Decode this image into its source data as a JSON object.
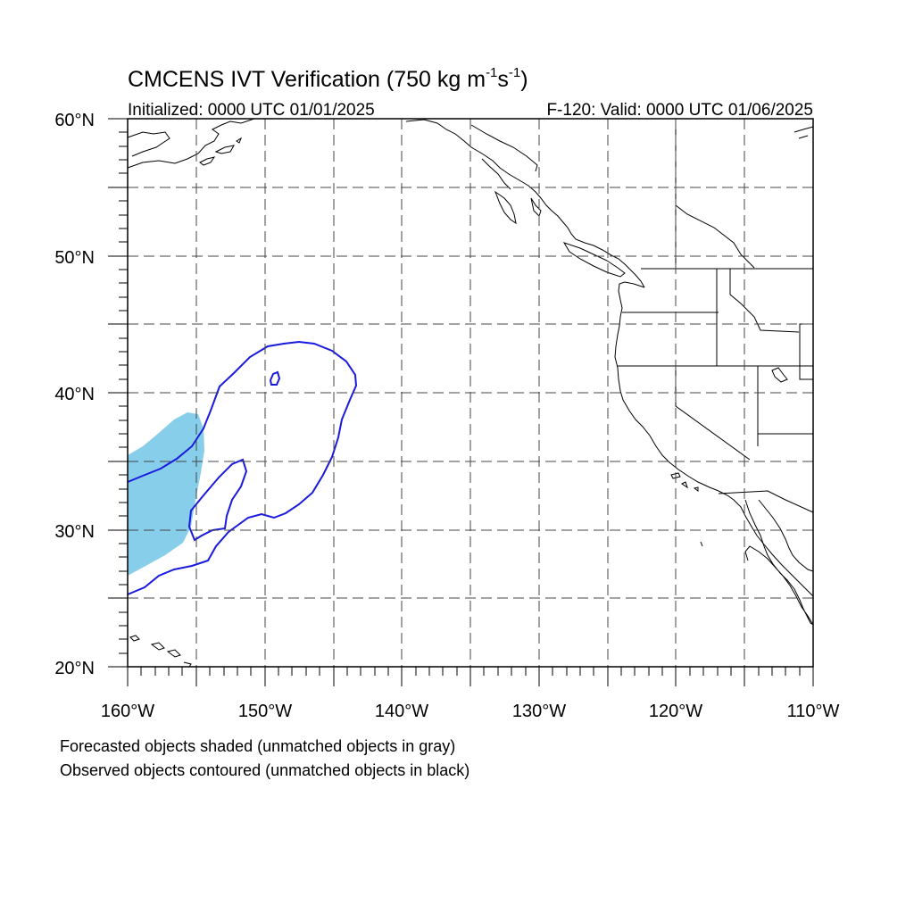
{
  "title": {
    "main": "CMCENS IVT Verification (750 kg m",
    "exp1": "-1",
    "mid": "s",
    "exp2": "-1",
    "close": ")"
  },
  "subtitle_left": "Initialized: 0000 UTC 01/01/2025",
  "subtitle_right": "F-120: Valid: 0000 UTC 01/06/2025",
  "map": {
    "lon_range": [
      -160,
      -110
    ],
    "lat_range": [
      20,
      60
    ],
    "grid": "dashed, every 5 degrees",
    "lon_labels": [
      "160°W",
      "150°W",
      "140°W",
      "130°W",
      "120°W",
      "110°W"
    ],
    "lat_labels": [
      "60°N",
      "50°N",
      "40°N",
      "30°N",
      "20°N"
    ],
    "colors": {
      "forecast_fill": "#87ceeb",
      "observed_contour": "#1a1adf",
      "coastline": "#000000",
      "grid": "#555555"
    }
  },
  "captions": {
    "line1": "Forecasted objects shaded (unmatched objects in gray)",
    "line2": "Observed objects contoured (unmatched objects in black)"
  }
}
